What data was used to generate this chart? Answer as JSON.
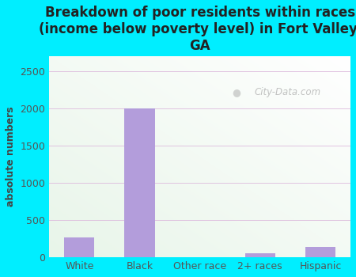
{
  "categories": [
    "White",
    "Black",
    "Other race",
    "2+ races",
    "Hispanic"
  ],
  "values": [
    270,
    2000,
    0,
    60,
    140
  ],
  "bar_color": "#b39ddb",
  "title": "Breakdown of poor residents within races\n(income below poverty level) in Fort Valley,\nGA",
  "ylabel": "absolute numbers",
  "ylim": [
    0,
    2700
  ],
  "yticks": [
    0,
    500,
    1000,
    1500,
    2000,
    2500
  ],
  "background_outer": "#00eeff",
  "background_plot_topleft": "#e8f5e9",
  "background_plot_bottomright": "#ffffff",
  "grid_color": "#ddbbdd",
  "watermark_text": "City-Data.com",
  "title_fontsize": 12,
  "ylabel_fontsize": 9,
  "tick_fontsize": 9,
  "title_color": "#222222",
  "axis_label_color": "#444444",
  "tick_color": "#555555"
}
